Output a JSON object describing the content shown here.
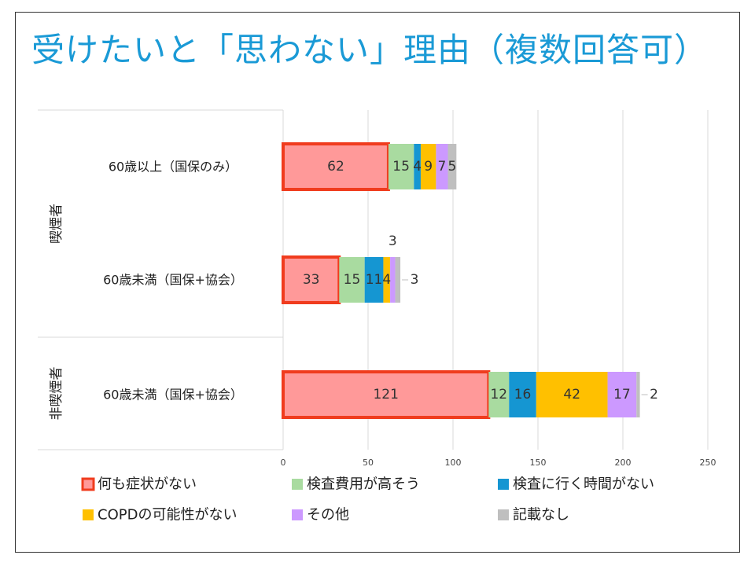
{
  "title": "受けたいと「思わない」理由（複数回答可）",
  "chart_data": {
    "type": "bar",
    "orientation": "horizontal",
    "stacked": true,
    "title": "",
    "xlabel": "",
    "ylabel": "",
    "xlim": [
      0,
      250
    ],
    "ticks": [
      0,
      50,
      100,
      150,
      200,
      250
    ],
    "grid": true,
    "legend_position": "bottom",
    "groups": [
      {
        "label": "喫煙者",
        "categories": [
          "60歳以上（国保のみ）",
          "60歳未満（国保+協会）"
        ]
      },
      {
        "label": "非喫煙者",
        "categories": [
          "60歳未満（国保+協会）"
        ]
      }
    ],
    "categories": [
      "60歳以上（国保のみ）",
      "60歳未満（国保+協会）",
      "60歳未満（国保+協会）"
    ],
    "series": [
      {
        "name": "何も症状がない",
        "values": [
          62,
          33,
          121
        ],
        "color": "#ff9999",
        "highlight": "#f03c1e"
      },
      {
        "name": "検査費用が高そう",
        "values": [
          15,
          15,
          12
        ],
        "color": "#a9dba0"
      },
      {
        "name": "検査に行く時間がない",
        "values": [
          4,
          11,
          16
        ],
        "color": "#1596d2"
      },
      {
        "name": "COPDの可能性がない",
        "values": [
          9,
          4,
          42
        ],
        "color": "#ffc000"
      },
      {
        "name": "その他",
        "values": [
          7,
          3,
          17
        ],
        "color": "#cc99ff"
      },
      {
        "name": "記載なし",
        "values": [
          5,
          3,
          2
        ],
        "color": "#bfbfbf"
      }
    ]
  }
}
